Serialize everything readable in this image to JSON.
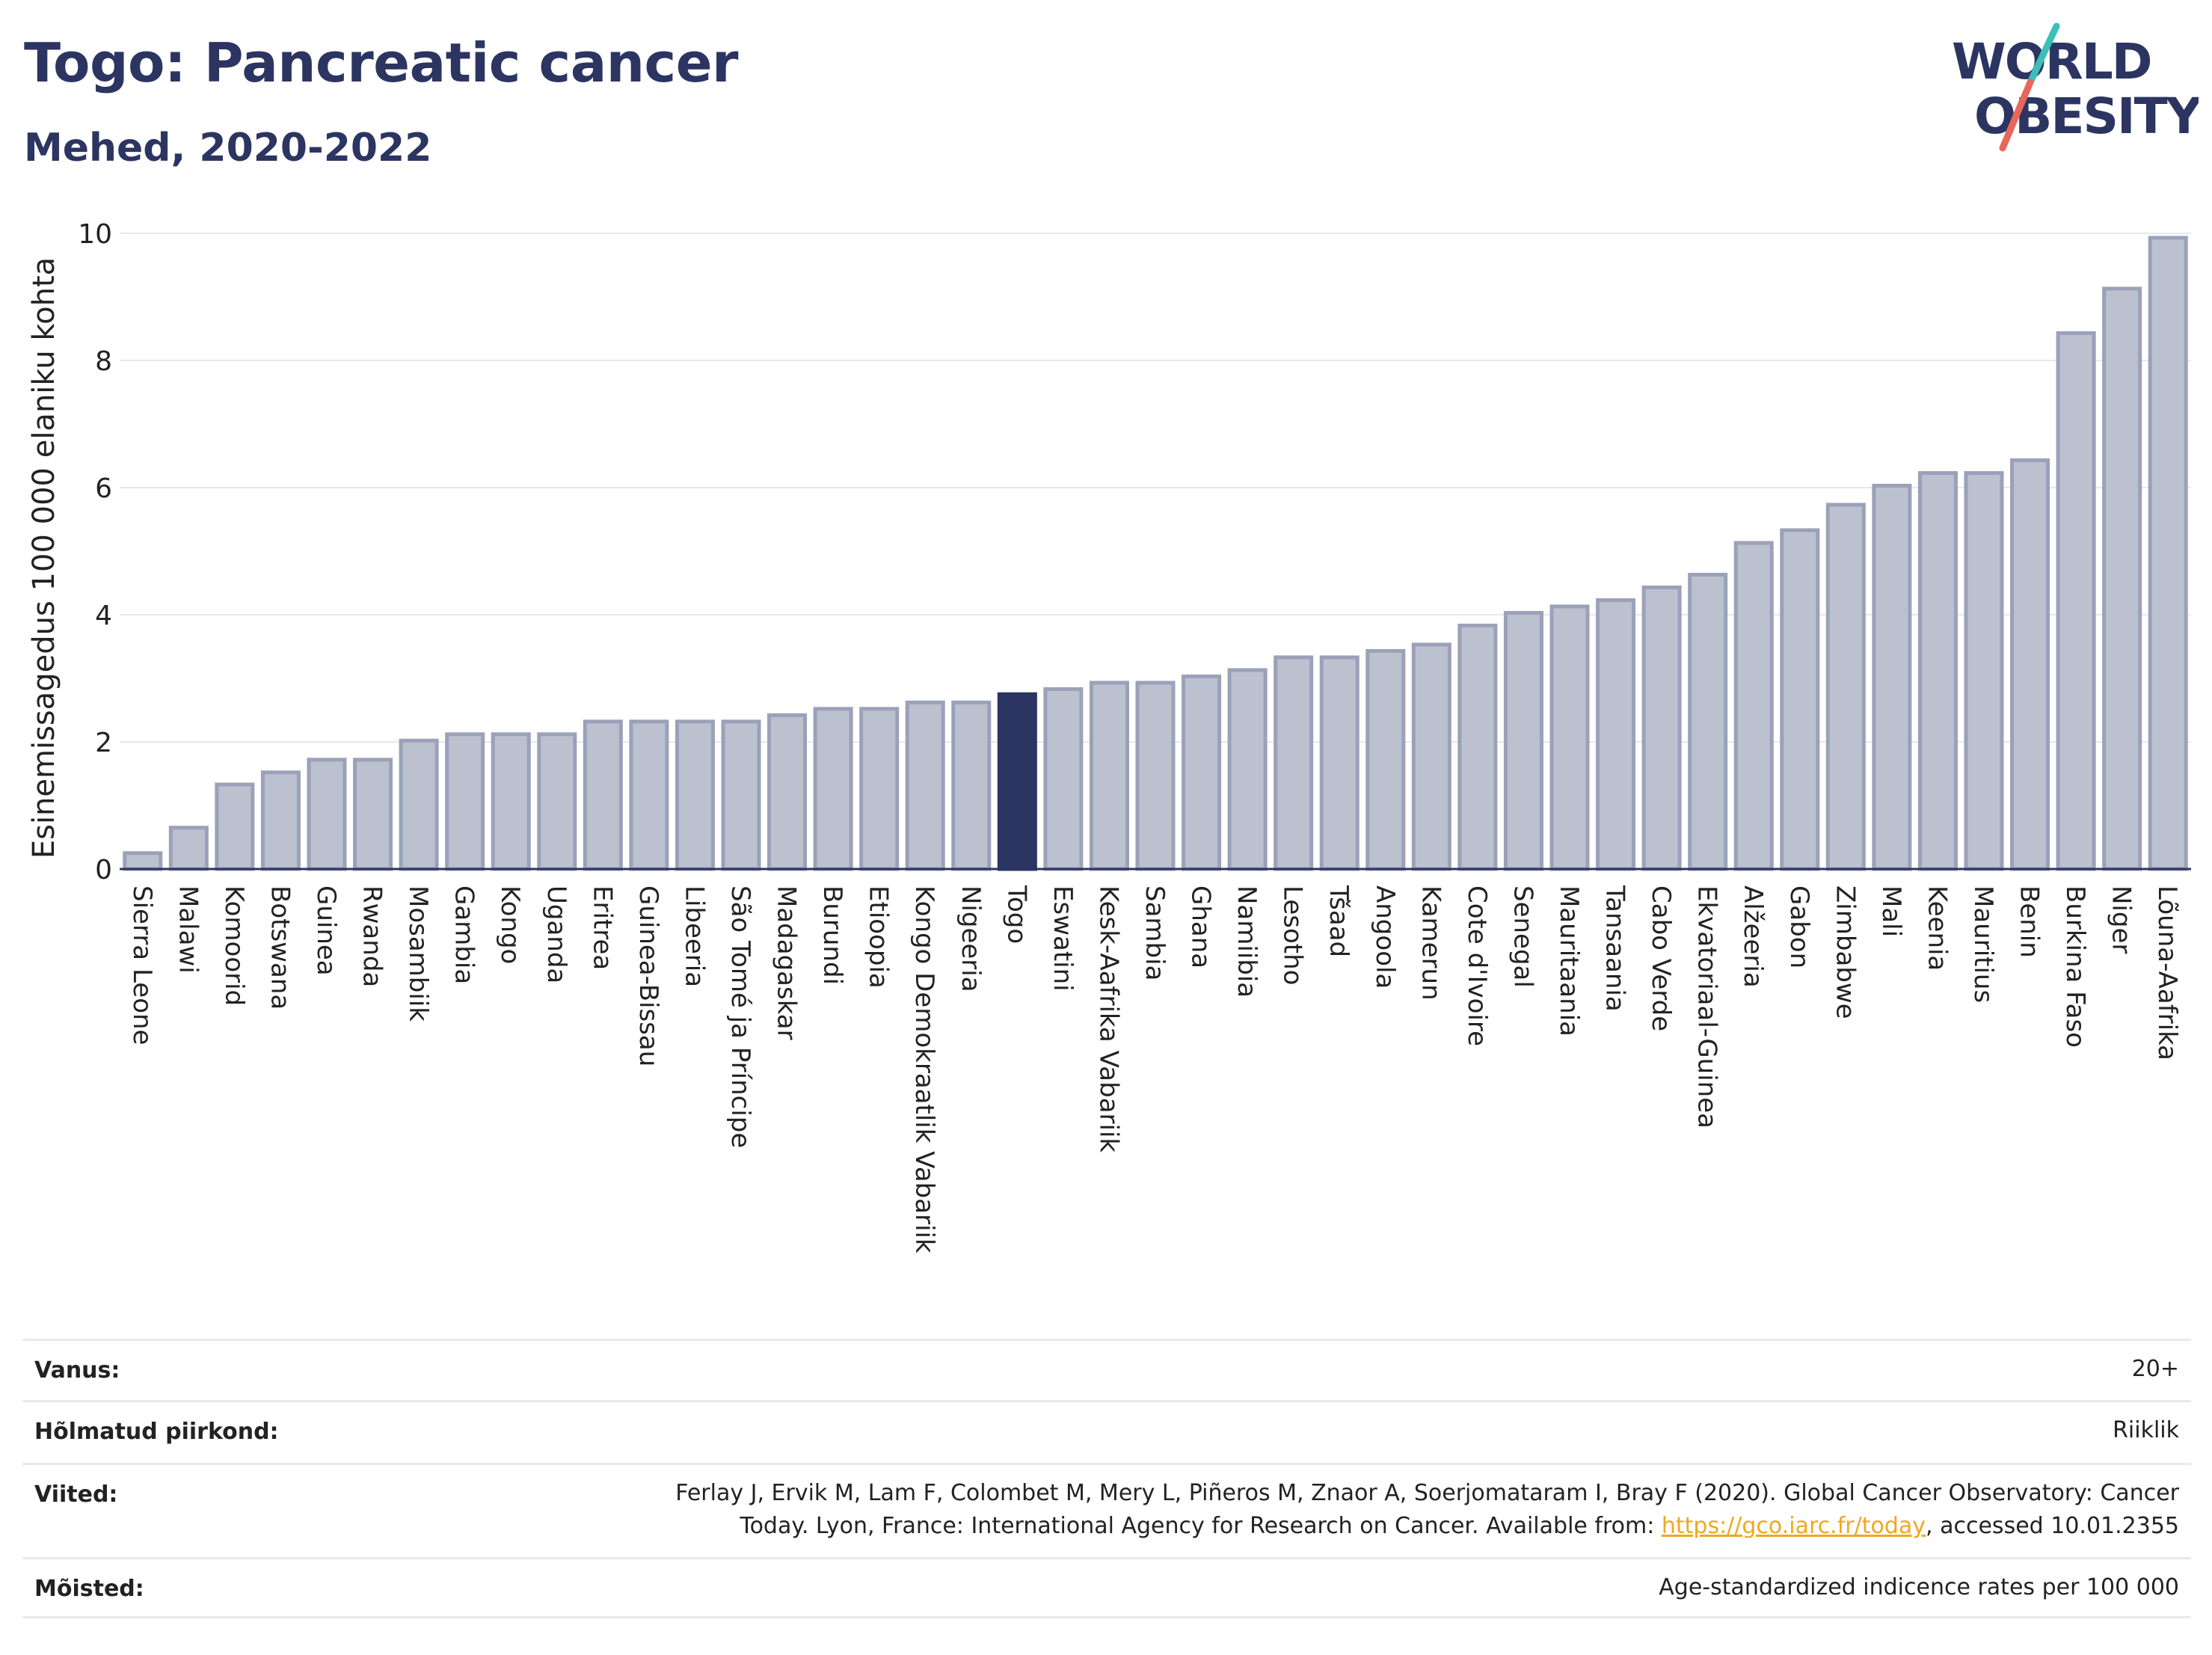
{
  "header": {
    "title": "Togo: Pancreatic cancer",
    "subtitle": "Mehed, 2020-2022"
  },
  "logo": {
    "line1": "WORLD",
    "line2": "OBESITY",
    "colors": {
      "text": "#2c3561",
      "slash_top": "#3bbfb8",
      "slash_bottom": "#e8675c"
    }
  },
  "colors": {
    "bar_fill": "#bcc1d0",
    "bar_stroke": "#9aa1b8",
    "highlight": "#2c3561",
    "grid": "#e6e8ee",
    "axis": "#2c3561"
  },
  "chart_data": {
    "type": "bar",
    "title": "",
    "xlabel": "",
    "ylabel": "Esinemissagedus 100 000 elaniku kohta",
    "ylim": [
      0,
      10
    ],
    "yticks": [
      0,
      2,
      4,
      6,
      8,
      10
    ],
    "grid": true,
    "highlight": "Togo",
    "categories": [
      "Sierra Leone",
      "Malawi",
      "Komoorid",
      "Botswana",
      "Guinea",
      "Rwanda",
      "Mosambiik",
      "Gambia",
      "Kongo",
      "Uganda",
      "Eritrea",
      "Guinea-Bissau",
      "Libeeria",
      "São Tomé ja Príncipe",
      "Madagaskar",
      "Burundi",
      "Etioopia",
      "Kongo Demokraatlik Vabariik",
      "Nigeeria",
      "Togo",
      "Eswatini",
      "Kesk-Aafrika Vabariik",
      "Sambia",
      "Ghana",
      "Namiibia",
      "Lesotho",
      "Tšaad",
      "Angoola",
      "Kamerun",
      "Cote d'Ivoire",
      "Senegal",
      "Mauritaania",
      "Tansaania",
      "Cabo Verde",
      "Ekvatoriaal-Guinea",
      "Alžeeria",
      "Gabon",
      "Zimbabwe",
      "Mali",
      "Keenia",
      "Mauritius",
      "Benin",
      "Burkina Faso",
      "Niger",
      "Lõuna-Aafrika"
    ],
    "values": [
      0.25,
      0.65,
      1.33,
      1.52,
      1.72,
      1.72,
      2.02,
      2.12,
      2.12,
      2.12,
      2.32,
      2.32,
      2.32,
      2.32,
      2.42,
      2.52,
      2.52,
      2.62,
      2.62,
      2.75,
      2.83,
      2.93,
      2.93,
      3.03,
      3.13,
      3.33,
      3.33,
      3.43,
      3.53,
      3.83,
      4.03,
      4.13,
      4.23,
      4.43,
      4.63,
      5.13,
      5.33,
      5.73,
      6.03,
      6.23,
      6.23,
      6.43,
      8.43,
      9.13,
      9.93
    ]
  },
  "info": {
    "rows": [
      {
        "label": "Vanus:",
        "value": "20+"
      },
      {
        "label": "Hõlmatud piirkond:",
        "value": "Riiklik"
      },
      {
        "label": "Viited:",
        "value_line1": "Ferlay J, Ervik M, Lam F, Colombet M, Mery L, Piñeros M, Znaor A, Soerjomataram I, Bray F (2020). Global Cancer Observatory: Cancer",
        "value_line2_pre": "Today. Lyon, France: International Agency for Research on Cancer. Available from: ",
        "link": "https://gco.iarc.fr/today",
        "value_line2_post": ", accessed 10.01.2355"
      },
      {
        "label": "Mõisted:",
        "value": "Age-standardized indicence rates per 100 000"
      }
    ]
  }
}
